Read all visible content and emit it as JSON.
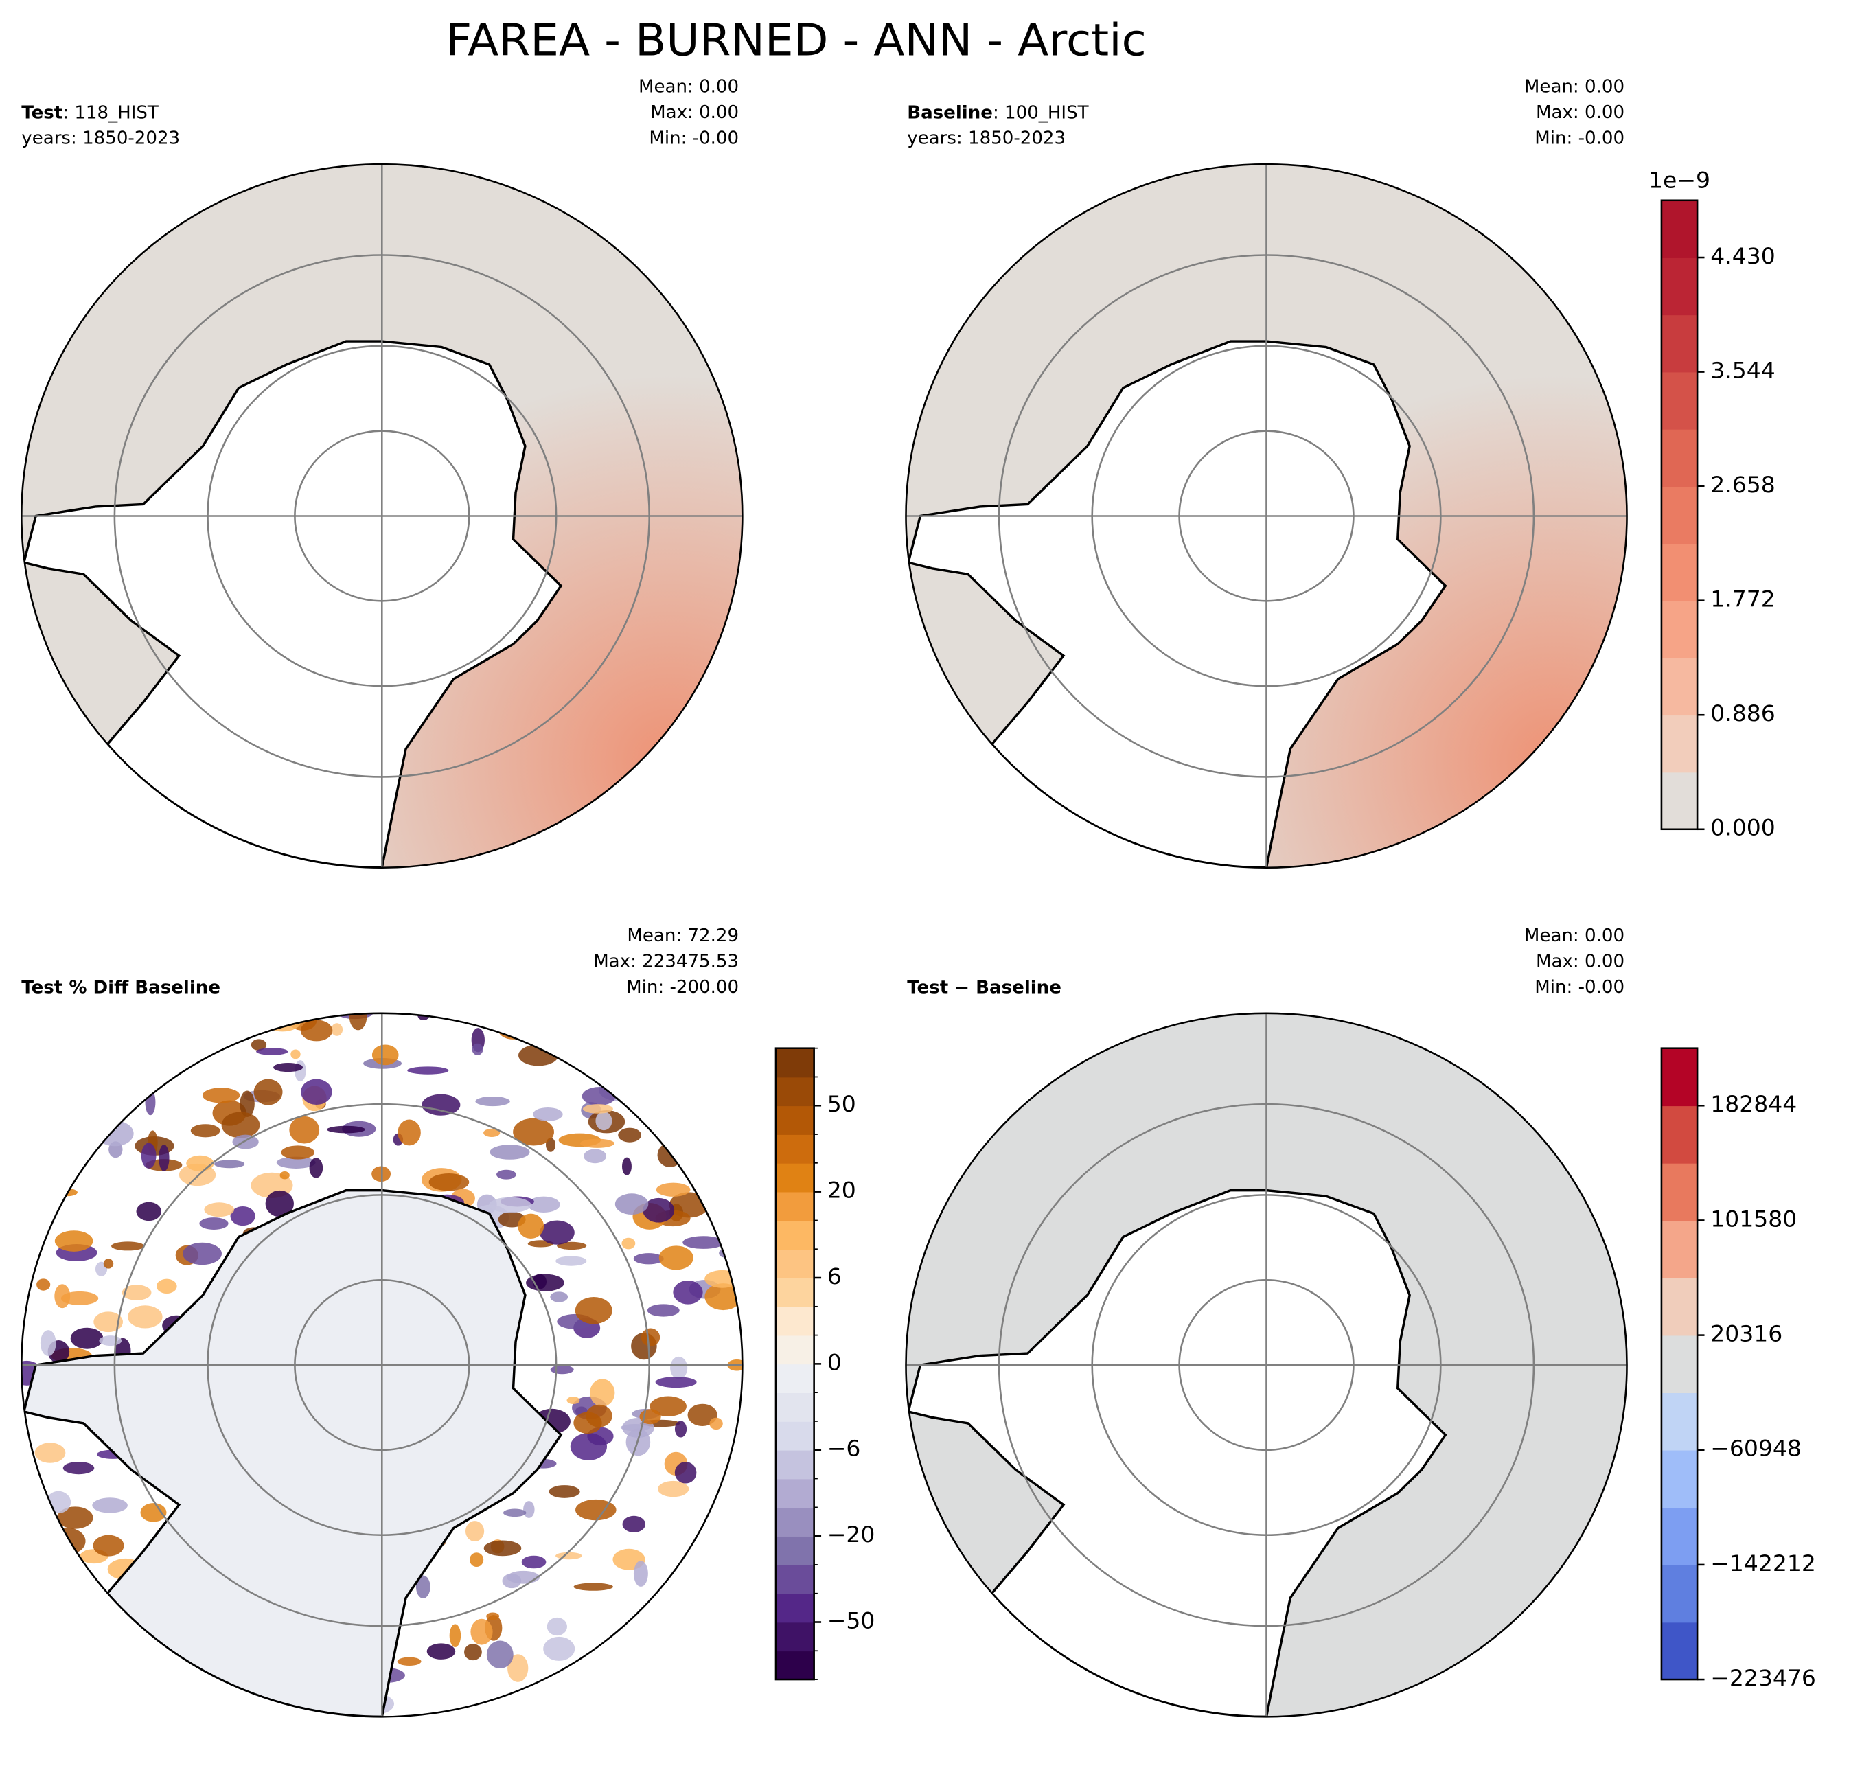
{
  "title": "FAREA - BURNED - ANN - Arctic",
  "chart_data": [
    {
      "type": "map",
      "name": "Test",
      "case": ": 118_HIST",
      "years": "years: 1850-2023",
      "stats": [
        "Mean:  0.00",
        "Max:  0.00",
        "Min: -0.00"
      ],
      "map_color": "#e2ddd8",
      "highlight": "#ef8a6a"
    },
    {
      "type": "map",
      "name": "Baseline",
      "case": ": 100_HIST",
      "years": "years: 1850-2023",
      "stats": [
        "Mean:  0.00",
        "Max:  0.00",
        "Min: -0.00"
      ],
      "map_color": "#e2ddd8",
      "highlight": "#ef8a6a",
      "colorbar": {
        "offset": "1e−9",
        "clim": [
          0,
          4.873
        ],
        "ticks": [
          {
            "value": 0,
            "label": "0.000"
          },
          0.886,
          1.772,
          2.658,
          3.544,
          {
            "value": 4.43,
            "label": "4.430"
          }
        ],
        "colors": [
          "#e2ddd9",
          "#f2cdbb",
          "#f6b9a0",
          "#f6a487",
          "#f28f72",
          "#ea7b62",
          "#e06754",
          "#d45249",
          "#c83c3e",
          "#bb2534",
          "#b0152c"
        ]
      }
    },
    {
      "type": "map",
      "name": "Test % Diff Baseline",
      "stats": [
        "Mean: 72.29",
        "Max: 223475.53",
        "Min: -200.00"
      ],
      "map_color": "#eceef3",
      "colorbar": {
        "levels": [
          -100,
          -75,
          -50,
          -40,
          -30,
          -20,
          -15,
          -10,
          -6,
          -4,
          -2,
          0,
          2,
          4,
          6,
          10,
          15,
          20,
          30,
          40,
          50,
          75,
          100
        ],
        "ticks": [
          {
            "value": -50,
            "label": "−50"
          },
          {
            "value": -20,
            "label": "−20"
          },
          {
            "value": -6,
            "label": "−6"
          },
          0,
          6,
          20,
          50
        ],
        "colors": [
          "#2d004b",
          "#3f1266",
          "#542788",
          "#6a4c9a",
          "#8073ac",
          "#998fbf",
          "#b2abd2",
          "#c5c3df",
          "#d8daeb",
          "#e2e4ee",
          "#eceef3",
          "#f7f0e6",
          "#fde8cf",
          "#fdd49e",
          "#fdc482",
          "#fdb863",
          "#f29c3d",
          "#e08214",
          "#cd6c0d",
          "#b35806",
          "#9a4a07",
          "#7f3b08"
        ]
      }
    },
    {
      "type": "map",
      "name": "Test − Baseline",
      "stats": [
        "Mean:  0.00",
        "Max:  0.00",
        "Min: -0.00"
      ],
      "map_color": "#dcdddd",
      "colorbar": {
        "clim": [
          -223476,
          223476
        ],
        "ticks": [
          {
            "value": -223476,
            "label": "−223476"
          },
          {
            "value": -142212,
            "label": "−142212"
          },
          {
            "value": -60948,
            "label": "−60948"
          },
          20316,
          101580,
          182844
        ],
        "colors": [
          "#3f56c8",
          "#5f7fe0",
          "#7d9ef2",
          "#9fbdf9",
          "#c0d4f5",
          "#dcdddd",
          "#f0cdbb",
          "#f4a68a",
          "#e8795e",
          "#d24a40",
          "#b40426"
        ]
      }
    }
  ]
}
